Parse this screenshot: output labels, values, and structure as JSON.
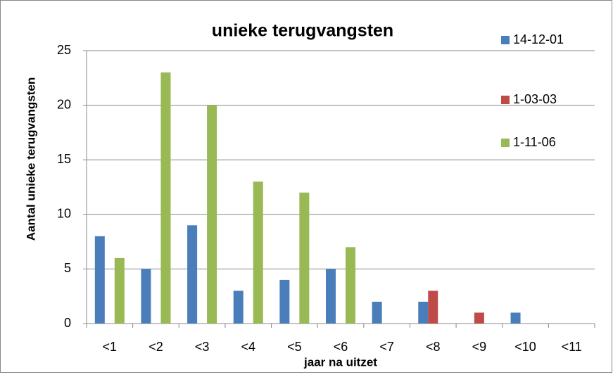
{
  "chart_data": {
    "type": "bar",
    "title": "unieke terugvangsten",
    "x_label": "jaar na uitzet",
    "y_label": "Aantal unieke terugvangsten",
    "categories": [
      "<1",
      "<2",
      "<3",
      "<4",
      "<5",
      "<6",
      "<7",
      "<8",
      "<9",
      "<10",
      "<11"
    ],
    "series": [
      {
        "name": "14-12-01",
        "color": "#4a7ebb",
        "values": [
          8,
          5,
          9,
          3,
          4,
          5,
          2,
          2,
          0,
          1,
          0
        ]
      },
      {
        "name": "1-03-03",
        "color": "#be4b48",
        "values": [
          0,
          0,
          0,
          0,
          0,
          0,
          0,
          3,
          1,
          0,
          0
        ]
      },
      {
        "name": "1-11-06",
        "color": "#98b954",
        "values": [
          6,
          23,
          20,
          13,
          12,
          7,
          0,
          0,
          0,
          0,
          0
        ]
      }
    ],
    "ylim": [
      0,
      25
    ],
    "yticks": [
      0,
      5,
      10,
      15,
      20,
      25
    ],
    "grid": true,
    "legend": "right"
  }
}
